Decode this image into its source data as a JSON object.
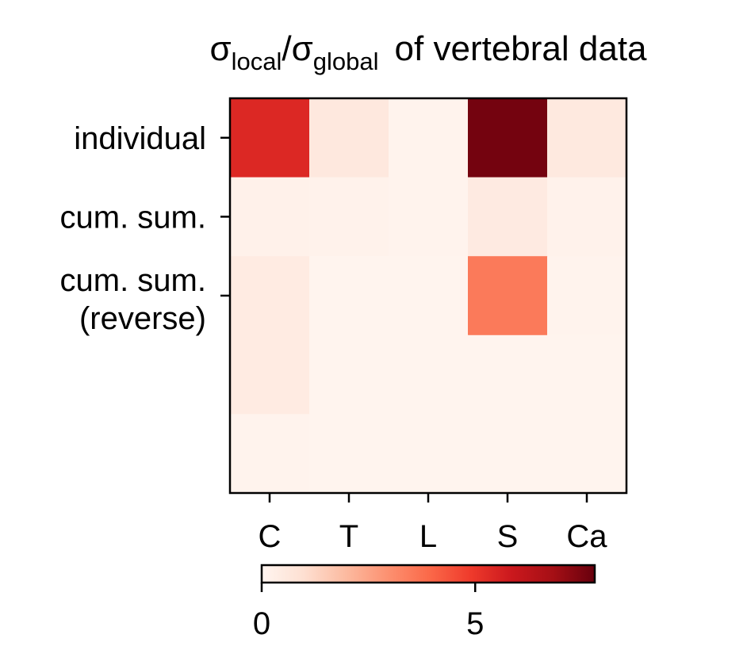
{
  "chart_data": {
    "type": "heatmap",
    "title": {
      "sigma": "σ",
      "sub1": "local",
      "slash": "/",
      "sub2": "global",
      "rest": "of vertebral data"
    },
    "x_categories": [
      "C",
      "T",
      "L",
      "S",
      "Ca"
    ],
    "y_tick_labels": [
      "individual",
      "cum. sum.",
      "cum. sum.\n(reverse)"
    ],
    "y_tick_positions": [
      0,
      1,
      2
    ],
    "grid_rows": 5,
    "values": [
      [
        5.4,
        0.6,
        0.1,
        7.6,
        0.55
      ],
      [
        0.2,
        0.15,
        0.1,
        0.5,
        0.15
      ],
      [
        0.45,
        0.05,
        0.05,
        3.5,
        0.1
      ],
      [
        0.45,
        0.05,
        0.05,
        0.05,
        0.05
      ],
      [
        0.1,
        0.05,
        0.05,
        0.05,
        0.05
      ]
    ],
    "colormap": "Reds",
    "colormap_stops": [
      "#fff5f0",
      "#fee0d2",
      "#fcbba1",
      "#fc9272",
      "#fb6a4a",
      "#ef3b2c",
      "#cb181d",
      "#a50f15",
      "#67000d"
    ],
    "vmin": 0,
    "vmax": 7.8,
    "colorbar": {
      "orientation": "horizontal",
      "ticks": [
        0,
        5
      ],
      "tick_labels": [
        "0",
        "5"
      ]
    },
    "grid": false,
    "legend": "none"
  }
}
